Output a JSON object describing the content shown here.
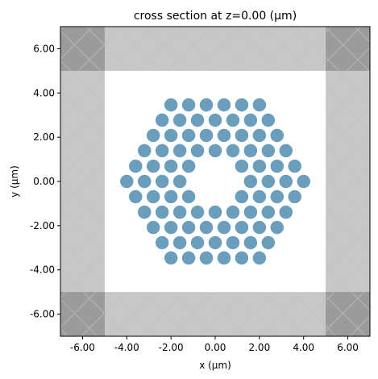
{
  "chart_data": {
    "type": "scatter",
    "title": "cross section at z=0.00 (μm)",
    "x_label": "x (μm)",
    "y_label": "y (μm)",
    "xlim": [
      -7,
      7
    ],
    "ylim": [
      -7,
      7
    ],
    "xticks": [
      {
        "value": -6,
        "label": "-6.00"
      },
      {
        "value": -4,
        "label": "-4.00"
      },
      {
        "value": -2,
        "label": "-2.00"
      },
      {
        "value": 0,
        "label": "0.00"
      },
      {
        "value": 2,
        "label": "2.00"
      },
      {
        "value": 4,
        "label": "4.00"
      },
      {
        "value": 6,
        "label": "6.00"
      }
    ],
    "yticks": [
      {
        "value": -6,
        "label": "-6.00"
      },
      {
        "value": -4,
        "label": "-4.00"
      },
      {
        "value": -2,
        "label": "-2.00"
      },
      {
        "value": 0,
        "label": "0.00"
      },
      {
        "value": 2,
        "label": "2.00"
      },
      {
        "value": 4,
        "label": "4.00"
      },
      {
        "value": 6,
        "label": "6.00"
      }
    ],
    "sim_bounds": {
      "x": [
        -5,
        5
      ],
      "y": [
        -5,
        5
      ]
    },
    "color": "#6b9dbd",
    "radius": 0.3,
    "x": [
      -2.0,
      -1.2,
      -0.4,
      0.4,
      1.2,
      2.0,
      -2.4,
      -1.6,
      -0.8,
      0,
      0.8,
      1.6,
      2.4,
      -2.8,
      -2.0,
      -1.2,
      -0.4,
      0.4,
      1.2,
      2.0,
      2.8,
      -3.2,
      -2.4,
      -1.6,
      -0.8,
      0,
      0.8,
      1.6,
      2.4,
      3.2,
      -3.6,
      -2.8,
      -2.0,
      -1.2,
      1.2,
      2.0,
      2.8,
      3.6,
      -4.0,
      -3.2,
      -2.4,
      -1.6,
      1.6,
      2.4,
      3.2,
      4.0,
      -3.6,
      -2.8,
      -2.0,
      -1.2,
      1.2,
      2.0,
      2.8,
      3.6,
      -3.2,
      -2.4,
      -1.6,
      -0.8,
      0,
      0.8,
      1.6,
      2.4,
      3.2,
      -2.8,
      -2.0,
      -1.2,
      -0.4,
      0.4,
      1.2,
      2.0,
      2.8,
      -2.4,
      -1.6,
      -0.8,
      0,
      0.8,
      1.6,
      2.4,
      -2.0,
      -1.2,
      -0.4,
      0.4,
      1.2,
      2.0
    ],
    "y": [
      3.46,
      3.46,
      3.46,
      3.46,
      3.46,
      3.46,
      2.77,
      2.77,
      2.77,
      2.77,
      2.77,
      2.77,
      2.77,
      2.08,
      2.08,
      2.08,
      2.08,
      2.08,
      2.08,
      2.08,
      2.08,
      1.39,
      1.39,
      1.39,
      1.39,
      1.39,
      1.39,
      1.39,
      1.39,
      1.39,
      0.69,
      0.69,
      0.69,
      0.69,
      0.69,
      0.69,
      0.69,
      0.69,
      0,
      0,
      0,
      0,
      0,
      0,
      0,
      0,
      -0.69,
      -0.69,
      -0.69,
      -0.69,
      -0.69,
      -0.69,
      -0.69,
      -0.69,
      -1.39,
      -1.39,
      -1.39,
      -1.39,
      -1.39,
      -1.39,
      -1.39,
      -1.39,
      -1.39,
      -2.08,
      -2.08,
      -2.08,
      -2.08,
      -2.08,
      -2.08,
      -2.08,
      -2.08,
      -2.77,
      -2.77,
      -2.77,
      -2.77,
      -2.77,
      -2.77,
      -2.77,
      -3.46,
      -3.46,
      -3.46,
      -3.46,
      -3.46,
      -3.46
    ]
  }
}
